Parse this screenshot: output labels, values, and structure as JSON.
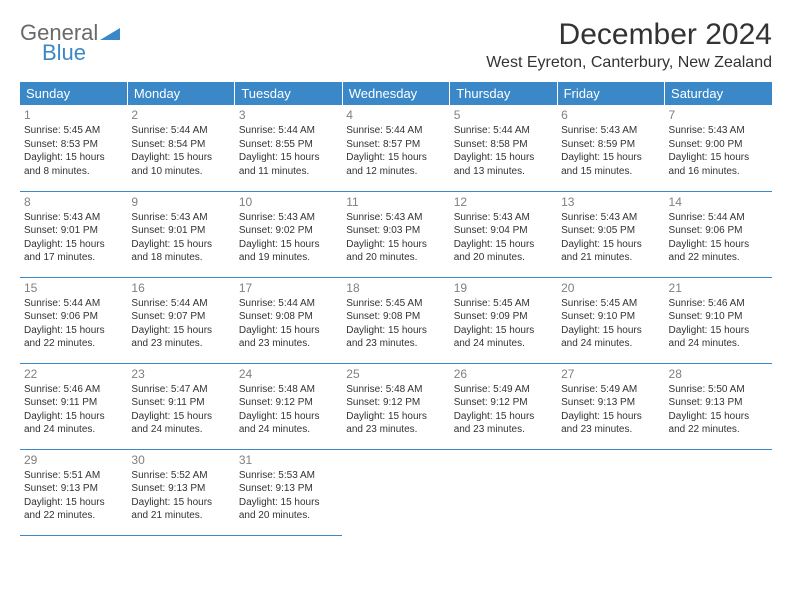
{
  "brand": {
    "top": "General",
    "bottom": "Blue"
  },
  "header": {
    "month_title": "December 2024",
    "location": "West Eyreton, Canterbury, New Zealand"
  },
  "colors": {
    "header_bg": "#3a88c8",
    "header_fg": "#ffffff",
    "cell_border": "#3a88c8",
    "daynum": "#808080",
    "text": "#333333",
    "logo_gray": "#6a6a6a",
    "logo_blue": "#3a88c8",
    "page_bg": "#ffffff"
  },
  "weekdays": [
    "Sunday",
    "Monday",
    "Tuesday",
    "Wednesday",
    "Thursday",
    "Friday",
    "Saturday"
  ],
  "days": [
    {
      "n": "1",
      "sr": "5:45 AM",
      "ss": "8:53 PM",
      "dl": "15 hours and 8 minutes."
    },
    {
      "n": "2",
      "sr": "5:44 AM",
      "ss": "8:54 PM",
      "dl": "15 hours and 10 minutes."
    },
    {
      "n": "3",
      "sr": "5:44 AM",
      "ss": "8:55 PM",
      "dl": "15 hours and 11 minutes."
    },
    {
      "n": "4",
      "sr": "5:44 AM",
      "ss": "8:57 PM",
      "dl": "15 hours and 12 minutes."
    },
    {
      "n": "5",
      "sr": "5:44 AM",
      "ss": "8:58 PM",
      "dl": "15 hours and 13 minutes."
    },
    {
      "n": "6",
      "sr": "5:43 AM",
      "ss": "8:59 PM",
      "dl": "15 hours and 15 minutes."
    },
    {
      "n": "7",
      "sr": "5:43 AM",
      "ss": "9:00 PM",
      "dl": "15 hours and 16 minutes."
    },
    {
      "n": "8",
      "sr": "5:43 AM",
      "ss": "9:01 PM",
      "dl": "15 hours and 17 minutes."
    },
    {
      "n": "9",
      "sr": "5:43 AM",
      "ss": "9:01 PM",
      "dl": "15 hours and 18 minutes."
    },
    {
      "n": "10",
      "sr": "5:43 AM",
      "ss": "9:02 PM",
      "dl": "15 hours and 19 minutes."
    },
    {
      "n": "11",
      "sr": "5:43 AM",
      "ss": "9:03 PM",
      "dl": "15 hours and 20 minutes."
    },
    {
      "n": "12",
      "sr": "5:43 AM",
      "ss": "9:04 PM",
      "dl": "15 hours and 20 minutes."
    },
    {
      "n": "13",
      "sr": "5:43 AM",
      "ss": "9:05 PM",
      "dl": "15 hours and 21 minutes."
    },
    {
      "n": "14",
      "sr": "5:44 AM",
      "ss": "9:06 PM",
      "dl": "15 hours and 22 minutes."
    },
    {
      "n": "15",
      "sr": "5:44 AM",
      "ss": "9:06 PM",
      "dl": "15 hours and 22 minutes."
    },
    {
      "n": "16",
      "sr": "5:44 AM",
      "ss": "9:07 PM",
      "dl": "15 hours and 23 minutes."
    },
    {
      "n": "17",
      "sr": "5:44 AM",
      "ss": "9:08 PM",
      "dl": "15 hours and 23 minutes."
    },
    {
      "n": "18",
      "sr": "5:45 AM",
      "ss": "9:08 PM",
      "dl": "15 hours and 23 minutes."
    },
    {
      "n": "19",
      "sr": "5:45 AM",
      "ss": "9:09 PM",
      "dl": "15 hours and 24 minutes."
    },
    {
      "n": "20",
      "sr": "5:45 AM",
      "ss": "9:10 PM",
      "dl": "15 hours and 24 minutes."
    },
    {
      "n": "21",
      "sr": "5:46 AM",
      "ss": "9:10 PM",
      "dl": "15 hours and 24 minutes."
    },
    {
      "n": "22",
      "sr": "5:46 AM",
      "ss": "9:11 PM",
      "dl": "15 hours and 24 minutes."
    },
    {
      "n": "23",
      "sr": "5:47 AM",
      "ss": "9:11 PM",
      "dl": "15 hours and 24 minutes."
    },
    {
      "n": "24",
      "sr": "5:48 AM",
      "ss": "9:12 PM",
      "dl": "15 hours and 24 minutes."
    },
    {
      "n": "25",
      "sr": "5:48 AM",
      "ss": "9:12 PM",
      "dl": "15 hours and 23 minutes."
    },
    {
      "n": "26",
      "sr": "5:49 AM",
      "ss": "9:12 PM",
      "dl": "15 hours and 23 minutes."
    },
    {
      "n": "27",
      "sr": "5:49 AM",
      "ss": "9:13 PM",
      "dl": "15 hours and 23 minutes."
    },
    {
      "n": "28",
      "sr": "5:50 AM",
      "ss": "9:13 PM",
      "dl": "15 hours and 22 minutes."
    },
    {
      "n": "29",
      "sr": "5:51 AM",
      "ss": "9:13 PM",
      "dl": "15 hours and 22 minutes."
    },
    {
      "n": "30",
      "sr": "5:52 AM",
      "ss": "9:13 PM",
      "dl": "15 hours and 21 minutes."
    },
    {
      "n": "31",
      "sr": "5:53 AM",
      "ss": "9:13 PM",
      "dl": "15 hours and 20 minutes."
    }
  ],
  "labels": {
    "sunrise": "Sunrise: ",
    "sunset": "Sunset: ",
    "daylight": "Daylight: "
  },
  "layout": {
    "first_weekday_index": 0,
    "weeks": 5,
    "cols": 7
  }
}
